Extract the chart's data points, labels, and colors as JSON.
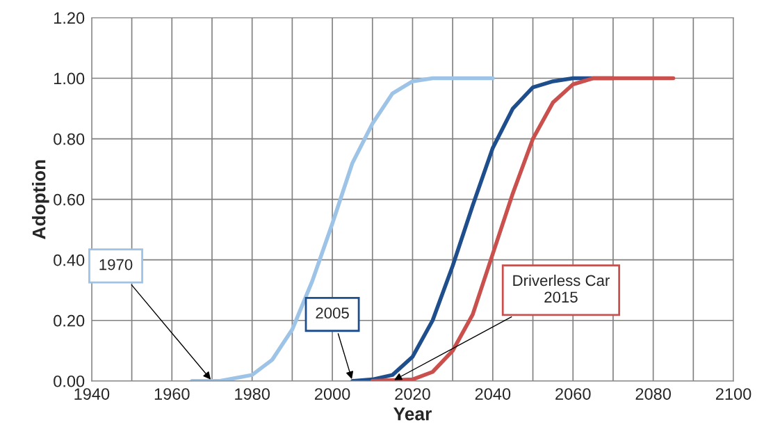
{
  "chart_data": {
    "type": "line",
    "xlabel": "Year",
    "ylabel": "Adoption",
    "xlim": [
      1940,
      2100
    ],
    "xticks": [
      1940,
      1960,
      1980,
      2000,
      2020,
      2040,
      2060,
      2080,
      2100
    ],
    "ylim": [
      0,
      1.2
    ],
    "yticks": [
      {
        "value": 0,
        "label": "0.00"
      },
      {
        "value": 0.2,
        "label": "0.20"
      },
      {
        "value": 0.4,
        "label": "0.40"
      },
      {
        "value": 0.6,
        "label": "0.60"
      },
      {
        "value": 0.8,
        "label": "0.80"
      },
      {
        "value": 1.0,
        "label": "1.00"
      },
      {
        "value": 1.2,
        "label": "1.20"
      }
    ],
    "grid": true,
    "marker": "none",
    "line_style": "solid",
    "series": [
      {
        "color": "#9dc3e6",
        "x": [
          1965,
          1972,
          1980,
          1985,
          1990,
          1995,
          2000,
          2005,
          2010,
          2015,
          2020,
          2025,
          2040
        ],
        "values": [
          0,
          0,
          0.02,
          0.07,
          0.17,
          0.33,
          0.52,
          0.72,
          0.85,
          0.95,
          0.99,
          1.0,
          1.0
        ]
      },
      {
        "color": "#1f4e8c",
        "x": [
          2005,
          2010,
          2015,
          2020,
          2025,
          2030,
          2035,
          2040,
          2045,
          2050,
          2055,
          2060,
          2070
        ],
        "values": [
          0,
          0.005,
          0.02,
          0.08,
          0.2,
          0.38,
          0.58,
          0.77,
          0.9,
          0.97,
          0.99,
          1.0,
          1.0
        ]
      },
      {
        "color": "#c9504c",
        "x": [
          2010,
          2020,
          2025,
          2030,
          2035,
          2040,
          2045,
          2050,
          2055,
          2060,
          2065,
          2085
        ],
        "values": [
          0,
          0.005,
          0.03,
          0.1,
          0.22,
          0.42,
          0.62,
          0.8,
          0.92,
          0.98,
          1.0,
          1.0
        ]
      }
    ],
    "annotations": [
      {
        "text": "1970",
        "x": 1970,
        "y": 0
      },
      {
        "text": "2005",
        "x": 2005,
        "y": 0
      },
      {
        "text": "Driverless Car\n2015",
        "x": 2015,
        "y": 0
      }
    ]
  }
}
